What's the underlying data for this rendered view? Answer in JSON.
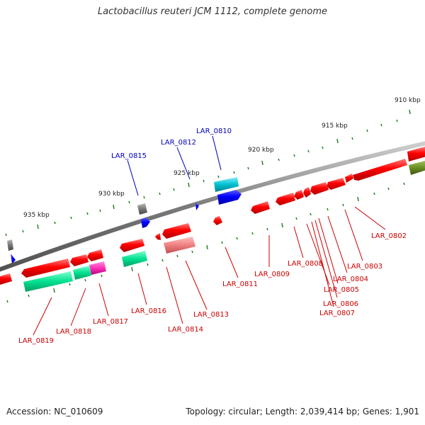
{
  "title": "Lactobacillus reuteri JCM 1112, complete genome",
  "footer": {
    "accession": "Accession: NC_010609",
    "topology": "Topology: circular; Length: 2,039,414 bp; Genes: 1,901"
  },
  "scale_labels": [
    "910 kbp",
    "915 kbp",
    "920 kbp",
    "925 kbp",
    "930 kbp",
    "935 kbp"
  ],
  "gene_labels_reverse": [
    "LAR_0802",
    "LAR_0803",
    "LAR_0804",
    "LAR_0805",
    "LAR_0806",
    "LAR_0807",
    "LAR_0808",
    "LAR_0809",
    "LAR_0811",
    "LAR_0813",
    "LAR_0814",
    "LAR_0816",
    "LAR_0817",
    "LAR_0818",
    "LAR_0819"
  ],
  "gene_labels_forward": [
    "LAR_0810",
    "LAR_0812",
    "LAR_0815"
  ],
  "colors": {
    "backbone": "#8a8a8a",
    "gene_red": "#ff0000",
    "gene_blue": "#0000ff",
    "gene_teal": "#00bfcf",
    "gene_green": "#00e090",
    "gene_pink": "#ff40c0",
    "gene_olive": "#6b8e23",
    "gene_gray": "#777777",
    "tick": "#1a7a1a"
  }
}
